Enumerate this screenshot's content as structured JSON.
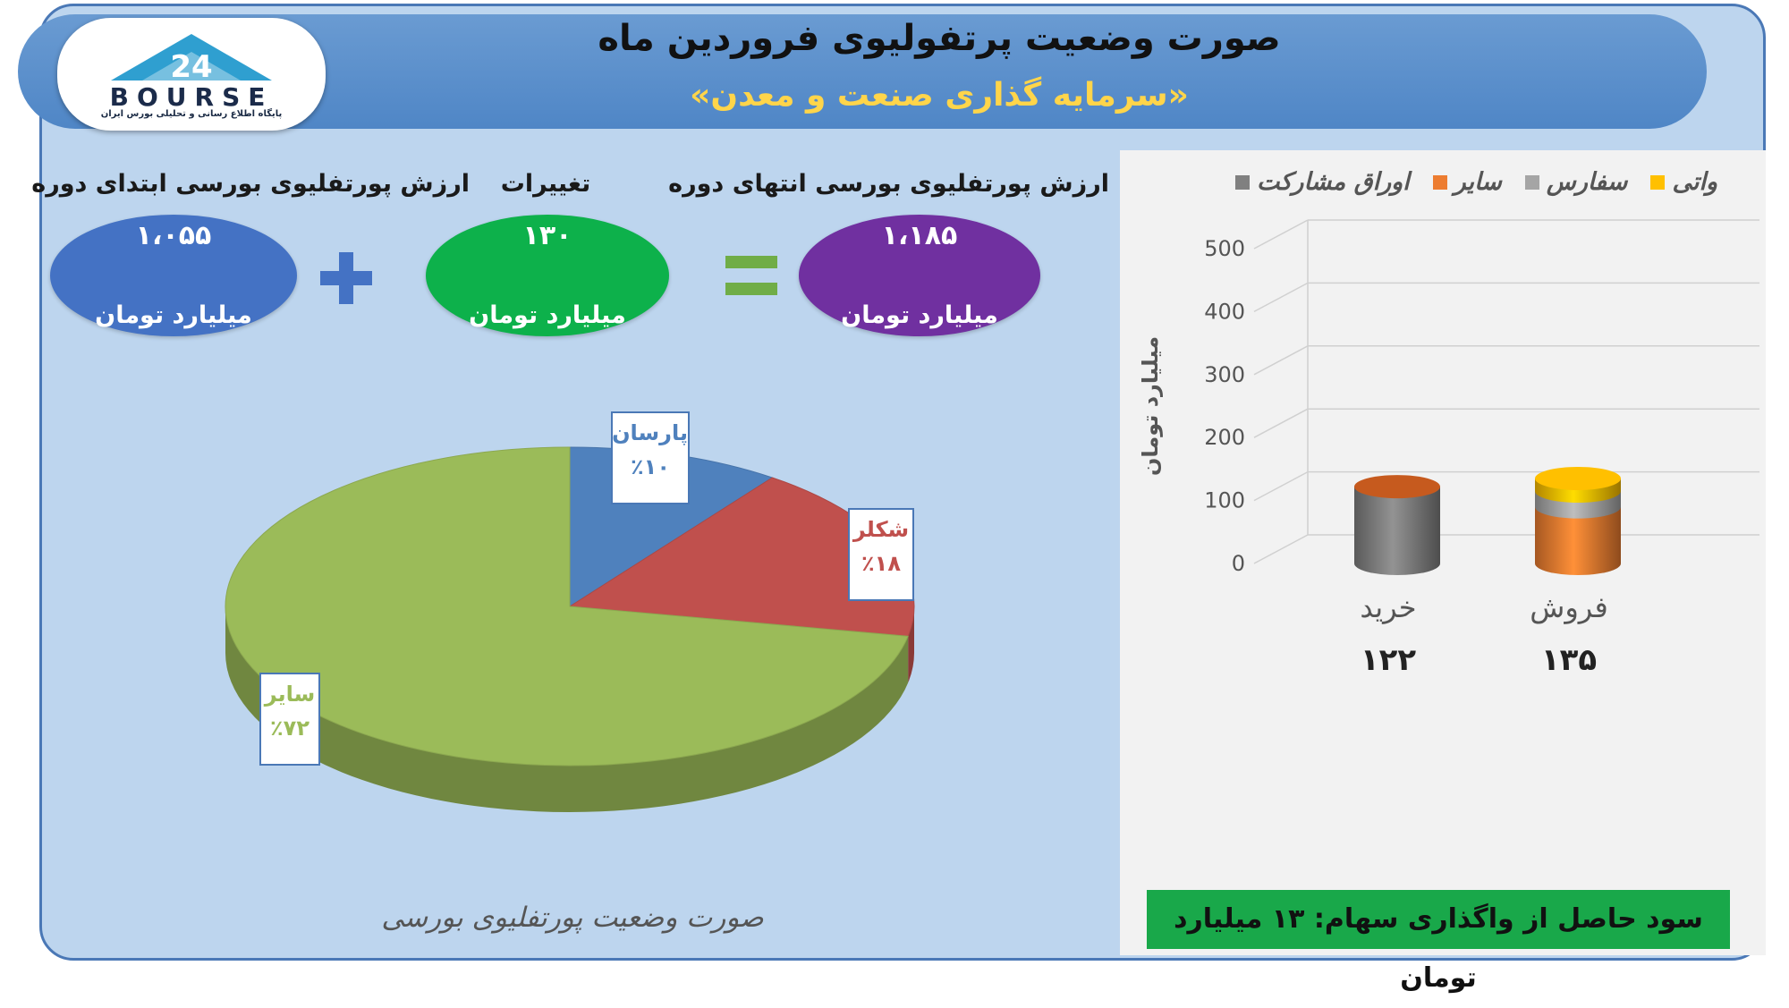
{
  "header": {
    "title": "صورت وضعیت پرتفولیوی فروردین ماه",
    "subtitle": "«سرمایه گذاری صنعت و معدن»"
  },
  "logo": {
    "text": "BOURSE",
    "number": "24",
    "tagline": "پایگاه اطلاع رسانی و تحلیلی بورس ایران"
  },
  "summary": {
    "start_label": "ارزش پورتفلیوی بورسی ابتدای دوره",
    "start_value": "۱،۰۵۵",
    "change_label": "تغییرات",
    "change_value": "۱۳۰",
    "end_label": "ارزش پورتفلیوی بورسی انتهای دوره",
    "end_value": "۱،۱۸۵",
    "unit": "میلیارد تومان",
    "colors": {
      "start": "#4472c4",
      "change": "#0db14b",
      "end": "#7030a0",
      "operator": "#4472c4",
      "equals": "#70ad47"
    }
  },
  "chart_data": [
    {
      "type": "pie",
      "title": "صورت وضعیت پورتفلیوی بورسی",
      "slices": [
        {
          "label": "پارسان",
          "value": 10,
          "display": "٪۱۰",
          "color": "#4f81bd"
        },
        {
          "label": "شکلر",
          "value": 18,
          "display": "٪۱۸",
          "color": "#c0504d"
        },
        {
          "label": "سایر",
          "value": 72,
          "display": "٪۷۲",
          "color": "#9bbb59"
        }
      ]
    },
    {
      "type": "bar",
      "ylabel": "میلیارد تومان",
      "ylim": [
        0,
        500
      ],
      "yticks": [
        0,
        100,
        200,
        300,
        400,
        500
      ],
      "grid": true,
      "legend": "top",
      "series_legend": [
        {
          "name": "واتی",
          "color": "#ffc000"
        },
        {
          "name": "سفارس",
          "color": "#a5a5a5"
        },
        {
          "name": "سایر",
          "color": "#ed7d31"
        },
        {
          "name": "اوراق مشارکت",
          "color": "#808080"
        }
      ],
      "categories": [
        "خرید",
        "فروش"
      ],
      "totals_display": [
        "۱۲۲",
        "۱۳۵"
      ],
      "stacks": [
        {
          "category": "خرید",
          "segments": [
            {
              "series": "اوراق مشارکت",
              "value": 122
            }
          ]
        },
        {
          "category": "فروش",
          "segments": [
            {
              "series": "سایر",
              "value": 90
            },
            {
              "series": "سفارس",
              "value": 25
            },
            {
              "series": "واتی",
              "value": 20
            }
          ]
        }
      ]
    }
  ],
  "footer": {
    "profit_text": "سود حاصل از واگذاری سهام: ۱۳ میلیارد تومان"
  }
}
